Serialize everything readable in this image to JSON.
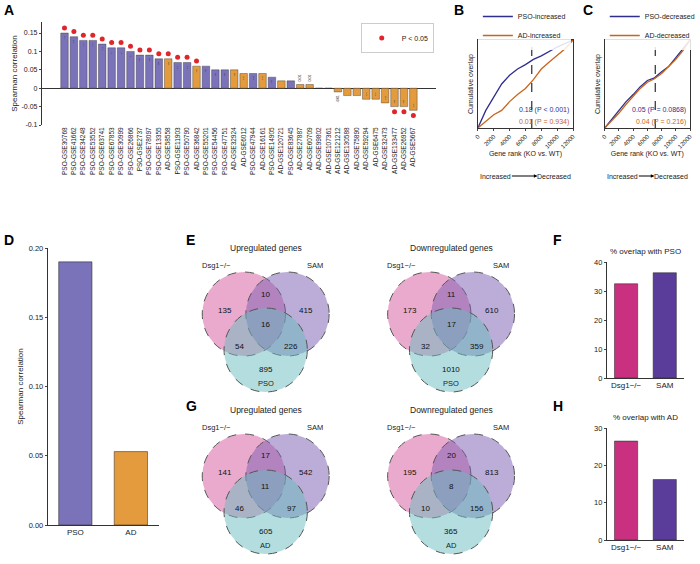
{
  "chart_data": [
    {
      "panel": "A",
      "type": "bar",
      "categories": [
        "PSO-GSE30768",
        "PSO-GSE41662",
        "PSO-GSE34248",
        "PSO-GSE53552",
        "PSO-GSE63741",
        "PSO-GSE67853",
        "PSO-GSE30999",
        "PSO-GSE26866",
        "PSO-GSE2737",
        "PSO-GSE78097",
        "PSO-GSE13355",
        "AD-GSE58558",
        "PSO-GSE11903",
        "PSO-GSE50790",
        "AD-GSE36842",
        "PSO-GSE55201",
        "PSO-GSE54456",
        "PSO-GSE47751",
        "AD-GSE32924",
        "AD-GSE6012",
        "PSO-GSE47944",
        "AD-GSE16161",
        "PSO-GSE14905",
        "AD-GSE120721",
        "PSO-GSE83645",
        "AD-GSE27887",
        "AD-GSE60709",
        "AD-GSE99802",
        "AD-GSE107361",
        "AD-GSE121212",
        "AD-GSE130588",
        "AD-GSE75890",
        "AD-GSE59294",
        "AD-GSE6475",
        "AD-GSE32473",
        "AD-GSE133477",
        "AD-GSE26952",
        "AD-GSE5667"
      ],
      "values": [
        0.15,
        0.14,
        0.13,
        0.13,
        0.12,
        0.11,
        0.11,
        0.1,
        0.09,
        0.09,
        0.08,
        0.08,
        0.07,
        0.07,
        0.06,
        0.06,
        0.05,
        0.05,
        0.05,
        0.04,
        0.04,
        0.04,
        0.03,
        0.02,
        0.02,
        0.01,
        0.01,
        0,
        0,
        -0.01,
        -0.02,
        -0.02,
        -0.03,
        -0.03,
        -0.04,
        -0.05,
        -0.05,
        -0.06
      ],
      "colors": [
        "#7b73b9",
        "#7b73b9",
        "#7b73b9",
        "#7b73b9",
        "#7b73b9",
        "#7b73b9",
        "#7b73b9",
        "#7b73b9",
        "#7b73b9",
        "#7b73b9",
        "#7b73b9",
        "#e39b3e",
        "#7b73b9",
        "#7b73b9",
        "#e39b3e",
        "#7b73b9",
        "#7b73b9",
        "#7b73b9",
        "#e39b3e",
        "#e39b3e",
        "#7b73b9",
        "#e39b3e",
        "#7b73b9",
        "#e39b3e",
        "#7b73b9",
        "#e39b3e",
        "#e39b3e",
        "#e39b3e",
        "#e39b3e",
        "#e39b3e",
        "#e39b3e",
        "#e39b3e",
        "#e39b3e",
        "#e39b3e",
        "#e39b3e",
        "#e39b3e",
        "#e39b3e",
        "#e39b3e"
      ],
      "significant": [
        true,
        true,
        true,
        true,
        true,
        true,
        true,
        true,
        true,
        true,
        true,
        true,
        true,
        true,
        true,
        false,
        false,
        false,
        false,
        false,
        false,
        false,
        false,
        false,
        false,
        false,
        false,
        false,
        false,
        false,
        false,
        false,
        false,
        false,
        false,
        true,
        true,
        true
      ],
      "significance_marker": {
        "name": "P < 0.05",
        "color": "#e0262b",
        "marker": "circle"
      },
      "ylabel": "Spearman correlation",
      "ylim": [
        -0.1,
        0.18
      ],
      "yticks": [
        -0.1,
        -0.05,
        0,
        0.05,
        0.1,
        0.15
      ],
      "data_labels": true,
      "legend": "top right",
      "grid": false
    },
    {
      "panel": "B",
      "type": "line",
      "x": [
        0,
        1000,
        2000,
        3000,
        4000,
        5000,
        6000,
        7000,
        8000,
        9000,
        10000,
        11000,
        12000
      ],
      "series": [
        {
          "name": "PSO-increased",
          "color": "#2e2f8f",
          "values": [
            0,
            0.2,
            0.35,
            0.5,
            0.6,
            0.67,
            0.72,
            0.78,
            0.82,
            0.87,
            0.92,
            0.96,
            1
          ],
          "statistic": "0.18 (P < 0.001)"
        },
        {
          "name": "AD-increased",
          "color": "#c8651b",
          "values": [
            0,
            0.07,
            0.15,
            0.2,
            0.3,
            0.38,
            0.45,
            0.55,
            0.67,
            0.75,
            0.82,
            0.9,
            1
          ],
          "statistic": "0.01 (P = 0.934)"
        }
      ],
      "xlabel": "Gene rank (KO vs. WT)",
      "direction_labels": [
        "Increased",
        "Decreased"
      ],
      "ylabel": "Cumulative overlap",
      "xlim": [
        0,
        12000
      ],
      "xticks": [
        0,
        2000,
        4000,
        6000,
        8000,
        10000,
        12000
      ],
      "ylim": [
        0,
        1
      ],
      "tick_labels": "x",
      "divider": 6800,
      "legend": "top",
      "grid": false
    },
    {
      "panel": "C",
      "type": "line",
      "x": [
        0,
        1000,
        2000,
        3000,
        4000,
        5000,
        6000,
        7000,
        8000,
        9000,
        10000,
        11000,
        12000
      ],
      "series": [
        {
          "name": "PSO-decreased",
          "color": "#2e2f8f",
          "values": [
            0,
            0.1,
            0.2,
            0.3,
            0.38,
            0.47,
            0.54,
            0.57,
            0.64,
            0.7,
            0.8,
            0.9,
            1
          ],
          "statistic": "0.05 (P = 0.0868)"
        },
        {
          "name": "AD-decreased",
          "color": "#c8651b",
          "values": [
            0,
            0.08,
            0.17,
            0.27,
            0.36,
            0.45,
            0.52,
            0.56,
            0.62,
            0.7,
            0.78,
            0.88,
            1
          ],
          "statistic": "0.04 (P = 0.216)"
        }
      ],
      "xlabel": "Gene rank (KO vs. WT)",
      "direction_labels": [
        "Increased",
        "Decreased"
      ],
      "ylabel": "Cumulative overlap",
      "xlim": [
        0,
        12000
      ],
      "xticks": [
        0,
        2000,
        4000,
        6000,
        8000,
        10000,
        12000
      ],
      "ylim": [
        0,
        1
      ],
      "tick_labels": "x",
      "divider": 7100,
      "legend": "top",
      "grid": false
    },
    {
      "panel": "D",
      "type": "bar",
      "categories": [
        "PSO",
        "AD"
      ],
      "values": [
        0.19,
        0.053
      ],
      "colors": [
        "#7b73b9",
        "#e39b3e"
      ],
      "ylabel": "Spearman correlation",
      "ylim": [
        0,
        0.2
      ],
      "yticks": [
        {
          "value": 0,
          "label": "0.00"
        },
        0.05,
        {
          "value": 0.1,
          "label": "0.10"
        },
        0.15,
        {
          "value": 0.2,
          "label": "0.20"
        }
      ],
      "grid": false
    },
    {
      "panel": "E",
      "type": "venn",
      "sets": [
        {
          "name": "Dsg1−/−",
          "color": "#d6559b"
        },
        {
          "name": "SAM",
          "color": "#7a5bb2"
        },
        {
          "name": "PSO",
          "color": "#67bcbd"
        }
      ],
      "diagrams": [
        {
          "title": "Upregulated genes",
          "regions": {
            "only_1": 135,
            "only_2": 415,
            "only_3": 895,
            "1_2": 10,
            "1_3": 54,
            "2_3": 226,
            "1_2_3": 16
          }
        },
        {
          "title": "Downregulated genes",
          "regions": {
            "only_1": 173,
            "only_2": 610,
            "only_3": 1010,
            "1_2": 11,
            "1_3": 32,
            "2_3": 359,
            "1_2_3": 17
          }
        }
      ]
    },
    {
      "panel": "F",
      "type": "bar",
      "title": "% overlap with PSO",
      "categories": [
        "Dsg1−/−",
        "SAM"
      ],
      "values": [
        32.5,
        36.3
      ],
      "colors": [
        "#c9307f",
        "#5a3d9a"
      ],
      "ylim": [
        0,
        40
      ],
      "yticks": [
        0,
        10,
        20,
        30,
        40
      ],
      "grid": false
    },
    {
      "panel": "G",
      "type": "venn",
      "sets": [
        {
          "name": "Dsg1−/−",
          "color": "#d6559b"
        },
        {
          "name": "SAM",
          "color": "#7a5bb2"
        },
        {
          "name": "AD",
          "color": "#67bcbd"
        }
      ],
      "diagrams": [
        {
          "title": "Upregulated genes",
          "regions": {
            "only_1": 141,
            "only_2": 542,
            "only_3": 605,
            "1_2": 17,
            "1_3": 46,
            "2_3": 97,
            "1_2_3": 11
          }
        },
        {
          "title": "Downregulated genes",
          "regions": {
            "only_1": 195,
            "only_2": 813,
            "only_3": 365,
            "1_2": 20,
            "1_3": 10,
            "2_3": 156,
            "1_2_3": 8
          }
        }
      ]
    },
    {
      "panel": "H",
      "type": "bar",
      "title": "% overlap with AD",
      "categories": [
        "Dsg1−/−",
        "SAM"
      ],
      "values": [
        26.5,
        16.2
      ],
      "colors": [
        "#c9307f",
        "#5a3d9a"
      ],
      "ylim": [
        0,
        30
      ],
      "yticks": [
        0,
        10,
        20,
        30
      ],
      "grid": false
    }
  ]
}
